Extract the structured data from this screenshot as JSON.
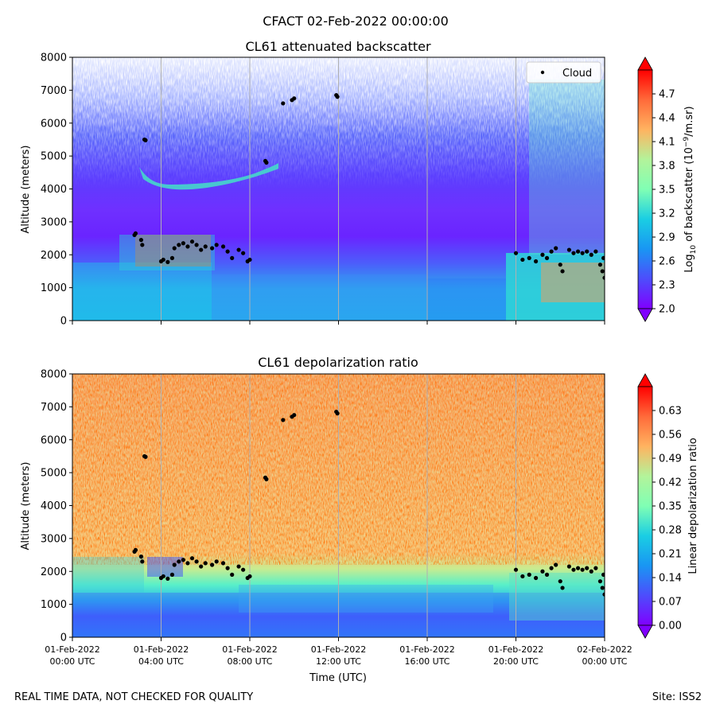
{
  "suptitle": "CFACT 02-Feb-2022 00:00:00",
  "footer": {
    "left": "REAL TIME DATA, NOT CHECKED FOR QUALITY",
    "right": "Site: ISS2"
  },
  "colormap": "rainbow",
  "chart_data": [
    {
      "type": "heatmap",
      "title": "CL61 attenuated backscatter",
      "ylabel": "Altitude (meters)",
      "xlabel": "",
      "x_range": [
        "2022-02-01T00:00:00Z",
        "2022-02-02T00:00:00Z"
      ],
      "ylim": [
        0,
        8000
      ],
      "yticks": [
        0,
        1000,
        2000,
        3000,
        4000,
        5000,
        6000,
        7000,
        8000
      ],
      "grid": "vertical",
      "colorbar": {
        "label_prefix": "Log",
        "label_sub": "10",
        "label_mid": " of backscatter (10",
        "label_sup": "−9",
        "label_suffix": "/m.sr)",
        "range": [
          2.0,
          5.0
        ],
        "ticks": [
          "2.0",
          "2.3",
          "2.6",
          "2.9",
          "3.2",
          "3.5",
          "3.8",
          "4.1",
          "4.4",
          "4.7"
        ],
        "extend": "both"
      },
      "legend": {
        "label": "Cloud",
        "placement": "top-right"
      }
    },
    {
      "type": "heatmap",
      "title": "CL61 depolarization ratio",
      "ylabel": "Altitude (meters)",
      "xlabel": "Time (UTC)",
      "x_range": [
        "2022-02-01T00:00:00Z",
        "2022-02-02T00:00:00Z"
      ],
      "ylim": [
        0,
        8000
      ],
      "yticks": [
        0,
        1000,
        2000,
        3000,
        4000,
        5000,
        6000,
        7000,
        8000
      ],
      "xticks": [
        {
          "date": "01-Feb-2022",
          "time": "00:00 UTC"
        },
        {
          "date": "01-Feb-2022",
          "time": "04:00 UTC"
        },
        {
          "date": "01-Feb-2022",
          "time": "08:00 UTC"
        },
        {
          "date": "01-Feb-2022",
          "time": "12:00 UTC"
        },
        {
          "date": "01-Feb-2022",
          "time": "16:00 UTC"
        },
        {
          "date": "01-Feb-2022",
          "time": "20:00 UTC"
        },
        {
          "date": "02-Feb-2022",
          "time": "00:00 UTC"
        }
      ],
      "grid": "vertical",
      "colorbar": {
        "label": "Linear depolarization ratio",
        "range": [
          0.0,
          0.7
        ],
        "ticks": [
          "0.00",
          "0.07",
          "0.14",
          "0.21",
          "0.28",
          "0.35",
          "0.42",
          "0.49",
          "0.56",
          "0.63"
        ],
        "extend": "both"
      }
    }
  ],
  "cloud_points": [
    [
      2.8,
      2600
    ],
    [
      2.85,
      2650
    ],
    [
      3.1,
      2450
    ],
    [
      3.15,
      2300
    ],
    [
      3.25,
      5500
    ],
    [
      3.3,
      5480
    ],
    [
      4.0,
      1800
    ],
    [
      4.1,
      1850
    ],
    [
      4.3,
      1780
    ],
    [
      4.5,
      1900
    ],
    [
      4.6,
      2200
    ],
    [
      4.8,
      2300
    ],
    [
      5.0,
      2350
    ],
    [
      5.2,
      2250
    ],
    [
      5.4,
      2400
    ],
    [
      5.6,
      2300
    ],
    [
      5.8,
      2150
    ],
    [
      6.0,
      2250
    ],
    [
      6.3,
      2200
    ],
    [
      6.5,
      2300
    ],
    [
      6.8,
      2250
    ],
    [
      7.0,
      2100
    ],
    [
      7.2,
      1900
    ],
    [
      7.5,
      2150
    ],
    [
      7.7,
      2050
    ],
    [
      7.9,
      1800
    ],
    [
      8.0,
      1850
    ],
    [
      8.7,
      4850
    ],
    [
      8.75,
      4800
    ],
    [
      9.5,
      6600
    ],
    [
      9.9,
      6700
    ],
    [
      10.0,
      6750
    ],
    [
      11.9,
      6850
    ],
    [
      11.95,
      6800
    ],
    [
      20.0,
      2050
    ],
    [
      20.3,
      1850
    ],
    [
      20.6,
      1900
    ],
    [
      20.9,
      1800
    ],
    [
      21.2,
      2000
    ],
    [
      21.4,
      1900
    ],
    [
      21.6,
      2100
    ],
    [
      21.8,
      2200
    ],
    [
      22.0,
      1700
    ],
    [
      22.1,
      1500
    ],
    [
      22.4,
      2150
    ],
    [
      22.6,
      2050
    ],
    [
      22.8,
      2100
    ],
    [
      23.0,
      2050
    ],
    [
      23.2,
      2100
    ],
    [
      23.4,
      2000
    ],
    [
      23.6,
      2100
    ],
    [
      23.8,
      1700
    ],
    [
      23.9,
      1500
    ],
    [
      24.0,
      1300
    ],
    [
      23.95,
      1900
    ]
  ]
}
